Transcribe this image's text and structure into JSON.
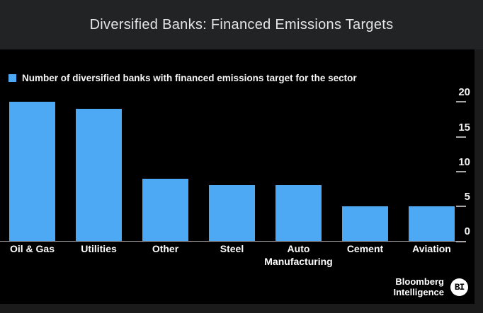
{
  "title": "Diversified Banks: Financed Emissions Targets",
  "chart_data": {
    "type": "bar",
    "title": "Diversified Banks: Financed Emissions Targets",
    "legend": "Number of diversified banks with financed emissions target for the sector",
    "legend_position": "top-left",
    "categories": [
      "Oil & Gas",
      "Utilities",
      "Other",
      "Steel",
      "Auto Manufacturing",
      "Cement",
      "Aviation"
    ],
    "values": [
      20,
      19,
      9,
      8,
      8,
      5,
      5
    ],
    "xlabel": "",
    "ylabel": "",
    "ylim": [
      0,
      20
    ],
    "yticks": [
      0,
      5,
      10,
      15,
      20
    ],
    "y_axis_side": "right",
    "grid": false,
    "bar_color": "#4EA9F4",
    "panel_background": "#000000"
  },
  "footer": {
    "line1": "Bloomberg",
    "line2": "Intelligence",
    "badge": "BI"
  },
  "colors": {
    "bar_blue": "#4EA9F4",
    "titlebar_bg": "#222325",
    "page_bg": "#1b1b1b",
    "panel_bg": "#000000",
    "axis_gray": "#9b9b9b",
    "title_text": "#e6e6e6",
    "label_text": "#ffffff"
  }
}
